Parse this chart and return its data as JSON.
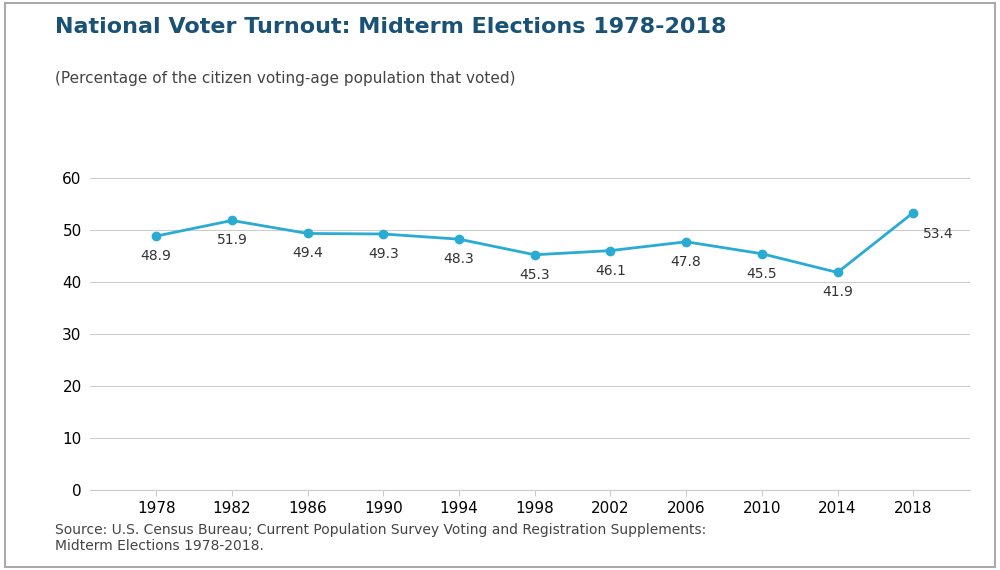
{
  "title": "National Voter Turnout: Midterm Elections 1978-2018",
  "subtitle": "(Percentage of the citizen voting-age population that voted)",
  "source_text": "Source: U.S. Census Bureau; Current Population Survey Voting and Registration Supplements:\nMidterm Elections 1978-2018.",
  "years": [
    1978,
    1982,
    1986,
    1990,
    1994,
    1998,
    2002,
    2006,
    2010,
    2014,
    2018
  ],
  "values": [
    48.9,
    51.9,
    49.4,
    49.3,
    48.3,
    45.3,
    46.1,
    47.8,
    45.5,
    41.9,
    53.4
  ],
  "line_color": "#29ABD4",
  "marker_color": "#29ABD4",
  "title_color": "#1A5276",
  "subtitle_color": "#444444",
  "source_color": "#444444",
  "bg_color": "#FFFFFF",
  "border_color": "#AAAAAA",
  "grid_color": "#CCCCCC",
  "ylim": [
    0,
    68
  ],
  "yticks": [
    0,
    10,
    20,
    30,
    40,
    50,
    60
  ],
  "title_fontsize": 16,
  "subtitle_fontsize": 11,
  "tick_fontsize": 11,
  "source_fontsize": 10,
  "annotation_fontsize": 10,
  "line_width": 2.0,
  "marker_size": 6
}
